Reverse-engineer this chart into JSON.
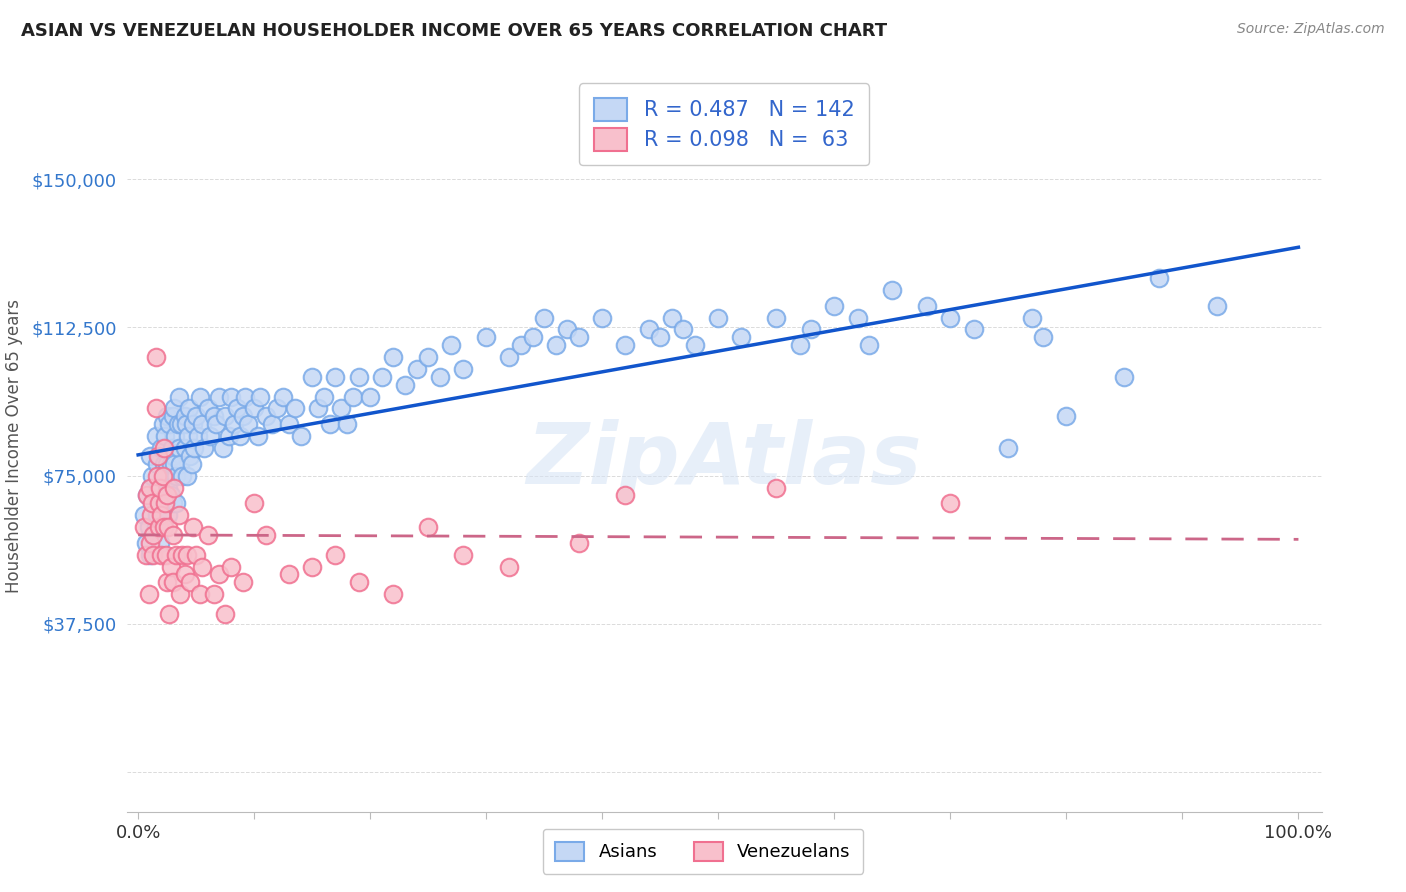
{
  "title": "ASIAN VS VENEZUELAN HOUSEHOLDER INCOME OVER 65 YEARS CORRELATION CHART",
  "source": "Source: ZipAtlas.com",
  "ylabel": "Householder Income Over 65 years",
  "y_ticks": [
    0,
    37500,
    75000,
    112500,
    150000
  ],
  "y_tick_labels": [
    "",
    "$37,500",
    "$75,000",
    "$112,500",
    "$150,000"
  ],
  "asian_color": "#7aaae8",
  "asian_color_fill": "#c5d8f5",
  "venezuelan_color": "#f07090",
  "venezuelan_color_fill": "#f8c0cc",
  "line_asian_color": "#1155cc",
  "line_venezuelan_color": "#cc6688",
  "R_asian": 0.487,
  "N_asian": 142,
  "R_venezuelan": 0.098,
  "N_venezuelan": 63,
  "legend_label_asian": "Asians",
  "legend_label_venezuelan": "Venezuelans",
  "legend_R_color": "#3366cc",
  "background_color": "#ffffff",
  "grid_color": "#cccccc",
  "title_color": "#222222",
  "source_color": "#888888",
  "watermark": "ZipAtlas",
  "xlim_min": -0.01,
  "xlim_max": 1.02,
  "ylim_min": -10000,
  "ylim_max": 175000,
  "asian_x": [
    0.005,
    0.007,
    0.008,
    0.009,
    0.01,
    0.01,
    0.01,
    0.012,
    0.012,
    0.013,
    0.015,
    0.015,
    0.015,
    0.016,
    0.016,
    0.017,
    0.018,
    0.018,
    0.019,
    0.02,
    0.02,
    0.02,
    0.021,
    0.022,
    0.022,
    0.023,
    0.023,
    0.024,
    0.025,
    0.025,
    0.026,
    0.026,
    0.027,
    0.028,
    0.028,
    0.029,
    0.03,
    0.03,
    0.03,
    0.031,
    0.031,
    0.032,
    0.033,
    0.033,
    0.034,
    0.035,
    0.035,
    0.036,
    0.037,
    0.038,
    0.04,
    0.04,
    0.041,
    0.042,
    0.043,
    0.044,
    0.045,
    0.046,
    0.047,
    0.048,
    0.05,
    0.052,
    0.053,
    0.055,
    0.057,
    0.06,
    0.062,
    0.065,
    0.067,
    0.07,
    0.073,
    0.075,
    0.078,
    0.08,
    0.083,
    0.085,
    0.088,
    0.09,
    0.092,
    0.095,
    0.1,
    0.103,
    0.105,
    0.11,
    0.115,
    0.12,
    0.125,
    0.13,
    0.135,
    0.14,
    0.15,
    0.155,
    0.16,
    0.165,
    0.17,
    0.175,
    0.18,
    0.185,
    0.19,
    0.2,
    0.21,
    0.22,
    0.23,
    0.24,
    0.25,
    0.26,
    0.27,
    0.28,
    0.3,
    0.32,
    0.33,
    0.34,
    0.35,
    0.36,
    0.37,
    0.38,
    0.4,
    0.42,
    0.44,
    0.45,
    0.46,
    0.47,
    0.48,
    0.5,
    0.52,
    0.55,
    0.57,
    0.58,
    0.6,
    0.62,
    0.63,
    0.65,
    0.68,
    0.7,
    0.72,
    0.75,
    0.77,
    0.78,
    0.8,
    0.85,
    0.88,
    0.93
  ],
  "asian_y": [
    65000,
    58000,
    70000,
    62000,
    72000,
    55000,
    80000,
    68000,
    75000,
    60000,
    85000,
    70000,
    62000,
    78000,
    65000,
    72000,
    80000,
    68000,
    58000,
    82000,
    72000,
    65000,
    88000,
    78000,
    68000,
    85000,
    75000,
    70000,
    90000,
    78000,
    72000,
    65000,
    88000,
    78000,
    70000,
    82000,
    90000,
    80000,
    68000,
    92000,
    78000,
    85000,
    75000,
    68000,
    88000,
    95000,
    82000,
    78000,
    88000,
    75000,
    90000,
    82000,
    88000,
    75000,
    85000,
    92000,
    80000,
    78000,
    88000,
    82000,
    90000,
    85000,
    95000,
    88000,
    82000,
    92000,
    85000,
    90000,
    88000,
    95000,
    82000,
    90000,
    85000,
    95000,
    88000,
    92000,
    85000,
    90000,
    95000,
    88000,
    92000,
    85000,
    95000,
    90000,
    88000,
    92000,
    95000,
    88000,
    92000,
    85000,
    100000,
    92000,
    95000,
    88000,
    100000,
    92000,
    88000,
    95000,
    100000,
    95000,
    100000,
    105000,
    98000,
    102000,
    105000,
    100000,
    108000,
    102000,
    110000,
    105000,
    108000,
    110000,
    115000,
    108000,
    112000,
    110000,
    115000,
    108000,
    112000,
    110000,
    115000,
    112000,
    108000,
    115000,
    110000,
    115000,
    108000,
    112000,
    118000,
    115000,
    108000,
    122000,
    118000,
    115000,
    112000,
    82000,
    115000,
    110000,
    90000,
    100000,
    125000,
    118000
  ],
  "venezuelan_x": [
    0.005,
    0.007,
    0.008,
    0.009,
    0.01,
    0.01,
    0.011,
    0.012,
    0.013,
    0.013,
    0.015,
    0.015,
    0.016,
    0.017,
    0.018,
    0.018,
    0.019,
    0.02,
    0.02,
    0.021,
    0.022,
    0.022,
    0.023,
    0.024,
    0.025,
    0.025,
    0.026,
    0.027,
    0.028,
    0.03,
    0.03,
    0.031,
    0.033,
    0.035,
    0.036,
    0.038,
    0.04,
    0.042,
    0.045,
    0.047,
    0.05,
    0.053,
    0.055,
    0.06,
    0.065,
    0.07,
    0.075,
    0.08,
    0.09,
    0.1,
    0.11,
    0.13,
    0.15,
    0.17,
    0.19,
    0.22,
    0.25,
    0.28,
    0.32,
    0.38,
    0.42,
    0.55,
    0.7
  ],
  "venezuelan_y": [
    62000,
    55000,
    70000,
    45000,
    72000,
    58000,
    65000,
    68000,
    55000,
    60000,
    105000,
    92000,
    75000,
    80000,
    68000,
    62000,
    72000,
    65000,
    55000,
    75000,
    82000,
    62000,
    68000,
    55000,
    70000,
    48000,
    62000,
    40000,
    52000,
    48000,
    60000,
    72000,
    55000,
    65000,
    45000,
    55000,
    50000,
    55000,
    48000,
    62000,
    55000,
    45000,
    52000,
    60000,
    45000,
    50000,
    40000,
    52000,
    48000,
    68000,
    60000,
    50000,
    52000,
    55000,
    48000,
    45000,
    62000,
    55000,
    52000,
    58000,
    70000,
    72000,
    68000
  ]
}
